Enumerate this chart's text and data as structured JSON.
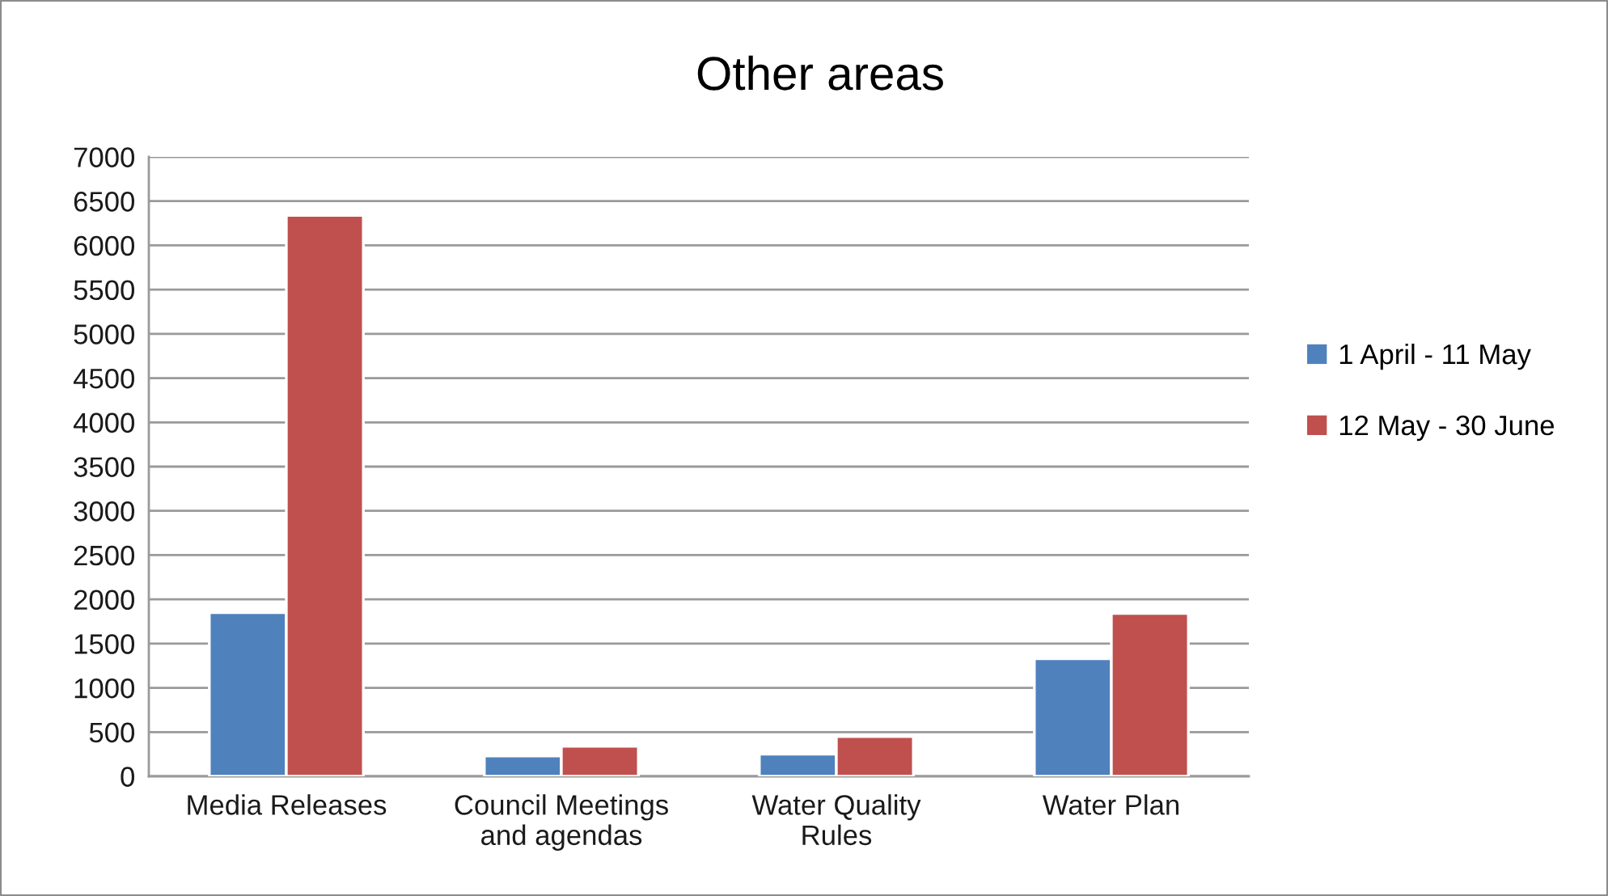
{
  "chart_data": {
    "type": "bar",
    "title": "Other areas",
    "categories": [
      "Media Releases",
      "Council Meetings and agendas",
      "Water Quality Rules",
      "Water Plan"
    ],
    "series": [
      {
        "name": "1 April - 11 May",
        "color": "#4f81bd",
        "values": [
          1850,
          230,
          250,
          1330
        ]
      },
      {
        "name": "12 May - 30 June",
        "color": "#c0504d",
        "values": [
          6340,
          340,
          450,
          1840
        ]
      }
    ],
    "ylim": [
      0,
      7000
    ],
    "yticks": [
      0,
      500,
      1000,
      1500,
      2000,
      2500,
      3000,
      3500,
      4000,
      4500,
      5000,
      5500,
      6000,
      6500,
      7000
    ],
    "grid": "y",
    "legend": "right"
  }
}
